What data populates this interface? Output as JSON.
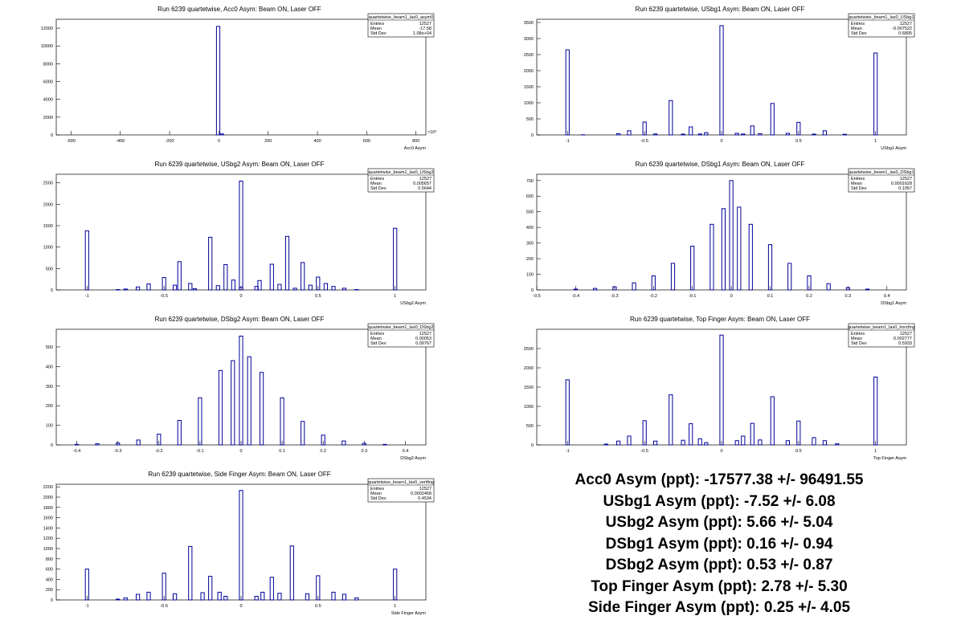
{
  "chart_data": [
    {
      "id": "acc0",
      "type": "bar",
      "title": "Run 6239 quartetwise, Acc0 Asym: Beam ON, Laser OFF",
      "xlabel": "Acc0 Asym",
      "ylabel": "",
      "xlim": [
        -660,
        840
      ],
      "ylim": [
        0,
        13000
      ],
      "xticks": [
        -600,
        -400,
        -200,
        0,
        200,
        400,
        600,
        800
      ],
      "xtick_labels": [
        "-600",
        "-400",
        "-200",
        "0",
        "200",
        "400",
        "600",
        "800"
      ],
      "x_exponent": "×10³",
      "yticks": [
        0,
        2000,
        4000,
        6000,
        8000,
        10000,
        12000
      ],
      "ytick_labels": [
        "0",
        "2000",
        "4000",
        "6000",
        "8000",
        "10000",
        "12000"
      ],
      "bins": [
        [
          -12,
          0
        ],
        [
          -3,
          12200
        ],
        [
          12,
          120
        ]
      ],
      "stats": {
        "name": "quartetwise_beam1_las0_asym0",
        "entries": "12527",
        "mean": "-17.58",
        "std_dev": "1.08e+04"
      }
    },
    {
      "id": "usbg1",
      "type": "bar",
      "title": "Run 6239 quartetwise, USbg1 Asym: Beam ON, Laser OFF",
      "xlabel": "USbg1 Asym",
      "ylabel": "",
      "xlim": [
        -1.2,
        1.2
      ],
      "ylim": [
        0,
        3600
      ],
      "xticks": [
        -1,
        -0.5,
        0,
        0.5,
        1
      ],
      "xtick_labels": [
        "-1",
        "-0.5",
        "0",
        "0.5",
        "1"
      ],
      "yticks": [
        0,
        500,
        1000,
        1500,
        2000,
        2500,
        3000,
        3500
      ],
      "ytick_labels": [
        "0",
        "500",
        "1000",
        "1500",
        "2000",
        "2500",
        "3000",
        "3500"
      ],
      "bins": [
        [
          -1,
          2650
        ],
        [
          -0.9,
          5
        ],
        [
          -0.67,
          40
        ],
        [
          -0.6,
          130
        ],
        [
          -0.5,
          400
        ],
        [
          -0.43,
          30
        ],
        [
          -0.33,
          1070
        ],
        [
          -0.25,
          25
        ],
        [
          -0.2,
          250
        ],
        [
          -0.14,
          30
        ],
        [
          -0.1,
          70
        ],
        [
          0,
          3400
        ],
        [
          0.1,
          50
        ],
        [
          0.14,
          30
        ],
        [
          0.2,
          280
        ],
        [
          0.25,
          40
        ],
        [
          0.33,
          980
        ],
        [
          0.43,
          50
        ],
        [
          0.5,
          390
        ],
        [
          0.6,
          25
        ],
        [
          0.67,
          130
        ],
        [
          0.8,
          20
        ],
        [
          1,
          2550
        ]
      ],
      "stats": {
        "name": "quartetwise_beam1_las0_USbg1",
        "entries": "12527",
        "mean": "-0.007522",
        "std_dev": "0.6805"
      }
    },
    {
      "id": "usbg2",
      "type": "bar",
      "title": "Run 6239 quartetwise, USbg2 Asym: Beam ON, Laser OFF",
      "xlabel": "USbg2 Asym",
      "ylabel": "",
      "xlim": [
        -1.2,
        1.2
      ],
      "ylim": [
        0,
        2700
      ],
      "xticks": [
        -1,
        -0.5,
        0,
        0.5,
        1
      ],
      "xtick_labels": [
        "-1",
        "-0.5",
        "0",
        "0.5",
        "1"
      ],
      "yticks": [
        0,
        500,
        1000,
        1500,
        2000,
        2500
      ],
      "ytick_labels": [
        "0",
        "500",
        "1000",
        "1500",
        "2000",
        "2500"
      ],
      "bins": [
        [
          -1,
          1380
        ],
        [
          -0.8,
          10
        ],
        [
          -0.75,
          20
        ],
        [
          -0.67,
          70
        ],
        [
          -0.6,
          140
        ],
        [
          -0.5,
          290
        ],
        [
          -0.43,
          110
        ],
        [
          -0.4,
          660
        ],
        [
          -0.33,
          150
        ],
        [
          -0.3,
          30
        ],
        [
          -0.2,
          1230
        ],
        [
          -0.15,
          100
        ],
        [
          -0.1,
          590
        ],
        [
          -0.05,
          230
        ],
        [
          0,
          60
        ],
        [
          0.0,
          2540
        ],
        [
          0.1,
          80
        ],
        [
          0.12,
          220
        ],
        [
          0.2,
          600
        ],
        [
          0.25,
          130
        ],
        [
          0.3,
          1250
        ],
        [
          0.35,
          40
        ],
        [
          0.4,
          640
        ],
        [
          0.45,
          110
        ],
        [
          0.5,
          300
        ],
        [
          0.55,
          150
        ],
        [
          0.6,
          80
        ],
        [
          0.67,
          40
        ],
        [
          0.75,
          10
        ],
        [
          1,
          1440
        ]
      ],
      "stats": {
        "name": "quartetwise_beam1_las0_USbg2",
        "entries": "12527",
        "mean": "0.005657",
        "std_dev": "0.5644"
      }
    },
    {
      "id": "dsbg1",
      "type": "bar",
      "title": "Run 6239 quartetwise, DSbg1 Asym: Beam ON, Laser OFF",
      "xlabel": "DSbg1 Asym",
      "ylabel": "",
      "xlim": [
        -0.5,
        0.45
      ],
      "ylim": [
        0,
        740
      ],
      "xticks": [
        -0.5,
        -0.4,
        -0.3,
        -0.2,
        -0.1,
        0,
        0.1,
        0.2,
        0.3,
        0.4
      ],
      "xtick_labels": [
        "-0.5",
        "-0.4",
        "-0.3",
        "-0.2",
        "-0.1",
        "0",
        "0.1",
        "0.2",
        "0.3",
        "0.4"
      ],
      "yticks": [
        0,
        100,
        200,
        300,
        400,
        500,
        600,
        700
      ],
      "ytick_labels": [
        "0",
        "100",
        "200",
        "300",
        "400",
        "500",
        "600",
        "700"
      ],
      "bins": [
        [
          -0.4,
          5
        ],
        [
          -0.35,
          10
        ],
        [
          -0.3,
          20
        ],
        [
          -0.25,
          45
        ],
        [
          -0.2,
          90
        ],
        [
          -0.15,
          170
        ],
        [
          -0.1,
          280
        ],
        [
          -0.05,
          420
        ],
        [
          -0.02,
          520
        ],
        [
          0,
          700
        ],
        [
          0.02,
          530
        ],
        [
          0.05,
          420
        ],
        [
          0.1,
          290
        ],
        [
          0.15,
          170
        ],
        [
          0.2,
          90
        ],
        [
          0.25,
          40
        ],
        [
          0.3,
          15
        ],
        [
          0.35,
          5
        ]
      ],
      "stats": {
        "name": "quartetwise_beam1_las0_DSbg1",
        "entries": "12527",
        "mean": "0.0001628",
        "std_dev": "0.1057"
      }
    },
    {
      "id": "dsbg2",
      "type": "bar",
      "title": "Run 6239 quartetwise, DSbg2 Asym: Beam ON, Laser OFF",
      "xlabel": "DSbg2 Asym",
      "ylabel": "",
      "xlim": [
        -0.45,
        0.45
      ],
      "ylim": [
        0,
        590
      ],
      "xticks": [
        -0.4,
        -0.3,
        -0.2,
        -0.1,
        0,
        0.1,
        0.2,
        0.3,
        0.4
      ],
      "xtick_labels": [
        "-0.4",
        "-0.3",
        "-0.2",
        "-0.1",
        "0",
        "0.1",
        "0.2",
        "0.3",
        "0.4"
      ],
      "yticks": [
        0,
        100,
        200,
        300,
        400,
        500
      ],
      "ytick_labels": [
        "0",
        "100",
        "200",
        "300",
        "400",
        "500"
      ],
      "bins": [
        [
          -0.4,
          3
        ],
        [
          -0.35,
          6
        ],
        [
          -0.3,
          10
        ],
        [
          -0.25,
          25
        ],
        [
          -0.2,
          55
        ],
        [
          -0.15,
          125
        ],
        [
          -0.1,
          240
        ],
        [
          -0.05,
          380
        ],
        [
          -0.02,
          430
        ],
        [
          0,
          555
        ],
        [
          0.02,
          450
        ],
        [
          0.05,
          370
        ],
        [
          0.1,
          240
        ],
        [
          0.15,
          120
        ],
        [
          0.2,
          50
        ],
        [
          0.25,
          20
        ],
        [
          0.3,
          8
        ],
        [
          0.35,
          3
        ]
      ],
      "stats": {
        "name": "quartetwise_beam1_las0_DSbg2",
        "entries": "12527",
        "mean": "0.00053",
        "std_dev": "0.09767"
      }
    },
    {
      "id": "topfinger",
      "type": "bar",
      "title": "Run 6239 quartetwise, Top Finger Asym: Beam ON, Laser OFF",
      "xlabel": "Top Finger Asym",
      "ylabel": "",
      "xlim": [
        -1.2,
        1.2
      ],
      "ylim": [
        0,
        3000
      ],
      "xticks": [
        -1,
        -0.5,
        0,
        0.5,
        1
      ],
      "xtick_labels": [
        "-1",
        "-0.5",
        "0",
        "0.5",
        "1"
      ],
      "yticks": [
        0,
        500,
        1000,
        1500,
        2000,
        2500
      ],
      "ytick_labels": [
        "0",
        "500",
        "1000",
        "1500",
        "2000",
        "2500"
      ],
      "bins": [
        [
          -1,
          1690
        ],
        [
          -0.75,
          20
        ],
        [
          -0.67,
          100
        ],
        [
          -0.6,
          230
        ],
        [
          -0.5,
          630
        ],
        [
          -0.43,
          100
        ],
        [
          -0.33,
          1300
        ],
        [
          -0.25,
          120
        ],
        [
          -0.2,
          550
        ],
        [
          -0.14,
          160
        ],
        [
          -0.1,
          60
        ],
        [
          0,
          2850
        ],
        [
          0.1,
          110
        ],
        [
          0.14,
          230
        ],
        [
          0.2,
          560
        ],
        [
          0.25,
          130
        ],
        [
          0.33,
          1250
        ],
        [
          0.43,
          110
        ],
        [
          0.5,
          620
        ],
        [
          0.6,
          190
        ],
        [
          0.67,
          110
        ],
        [
          0.75,
          30
        ],
        [
          1,
          1760
        ]
      ],
      "stats": {
        "name": "quartetwise_beam1_las0_horzfing",
        "entries": "12527",
        "mean": "0.002777",
        "std_dev": "0.5933"
      }
    },
    {
      "id": "sidefinger",
      "type": "bar",
      "title": "Run 6239 quartetwise, Side Finger Asym: Beam ON, Laser OFF",
      "xlabel": "Side Finger Asym",
      "ylabel": "",
      "xlim": [
        -1.2,
        1.2
      ],
      "ylim": [
        0,
        2250
      ],
      "xticks": [
        -1,
        -0.5,
        0,
        0.5,
        1
      ],
      "xtick_labels": [
        "-1",
        "-0.5",
        "0",
        "0.5",
        "1"
      ],
      "yticks": [
        0,
        200,
        400,
        600,
        800,
        1000,
        1200,
        1400,
        1600,
        1800,
        2000,
        2200
      ],
      "ytick_labels": [
        "0",
        "200",
        "400",
        "600",
        "800",
        "1000",
        "1200",
        "1400",
        "1600",
        "1800",
        "2000",
        "2200"
      ],
      "bins": [
        [
          -1,
          600
        ],
        [
          -0.8,
          15
        ],
        [
          -0.75,
          40
        ],
        [
          -0.67,
          110
        ],
        [
          -0.6,
          150
        ],
        [
          -0.5,
          520
        ],
        [
          -0.43,
          120
        ],
        [
          -0.33,
          1040
        ],
        [
          -0.25,
          140
        ],
        [
          -0.2,
          460
        ],
        [
          -0.14,
          150
        ],
        [
          -0.1,
          70
        ],
        [
          0,
          2130
        ],
        [
          0.1,
          70
        ],
        [
          0.14,
          150
        ],
        [
          0.2,
          440
        ],
        [
          0.25,
          130
        ],
        [
          0.33,
          1050
        ],
        [
          0.43,
          120
        ],
        [
          0.5,
          470
        ],
        [
          0.6,
          150
        ],
        [
          0.67,
          110
        ],
        [
          0.75,
          40
        ],
        [
          1,
          600
        ]
      ],
      "stats": {
        "name": "quartetwise_beam1_las0_vertfing",
        "entries": "12527",
        "mean": "0.0002468",
        "std_dev": "0.4534"
      }
    }
  ],
  "stat_labels": {
    "entries": "Entries",
    "mean": "Mean",
    "std_dev": "Std Dev"
  },
  "summary": [
    "Acc0 Asym (ppt): -17577.38 +/- 96491.55",
    "USbg1 Asym (ppt): -7.52 +/- 6.08",
    "USbg2 Asym (ppt): 5.66 +/- 5.04",
    "DSbg1 Asym (ppt): 0.16 +/- 0.94",
    "DSbg2 Asym (ppt): 0.53 +/- 0.87",
    "Top Finger Asym (ppt): 2.78 +/- 5.30",
    "Side Finger Asym (ppt): 0.25 +/- 4.05"
  ],
  "colors": {
    "histogram": "#000099",
    "axis": "#000000",
    "background": "#ffffff"
  }
}
